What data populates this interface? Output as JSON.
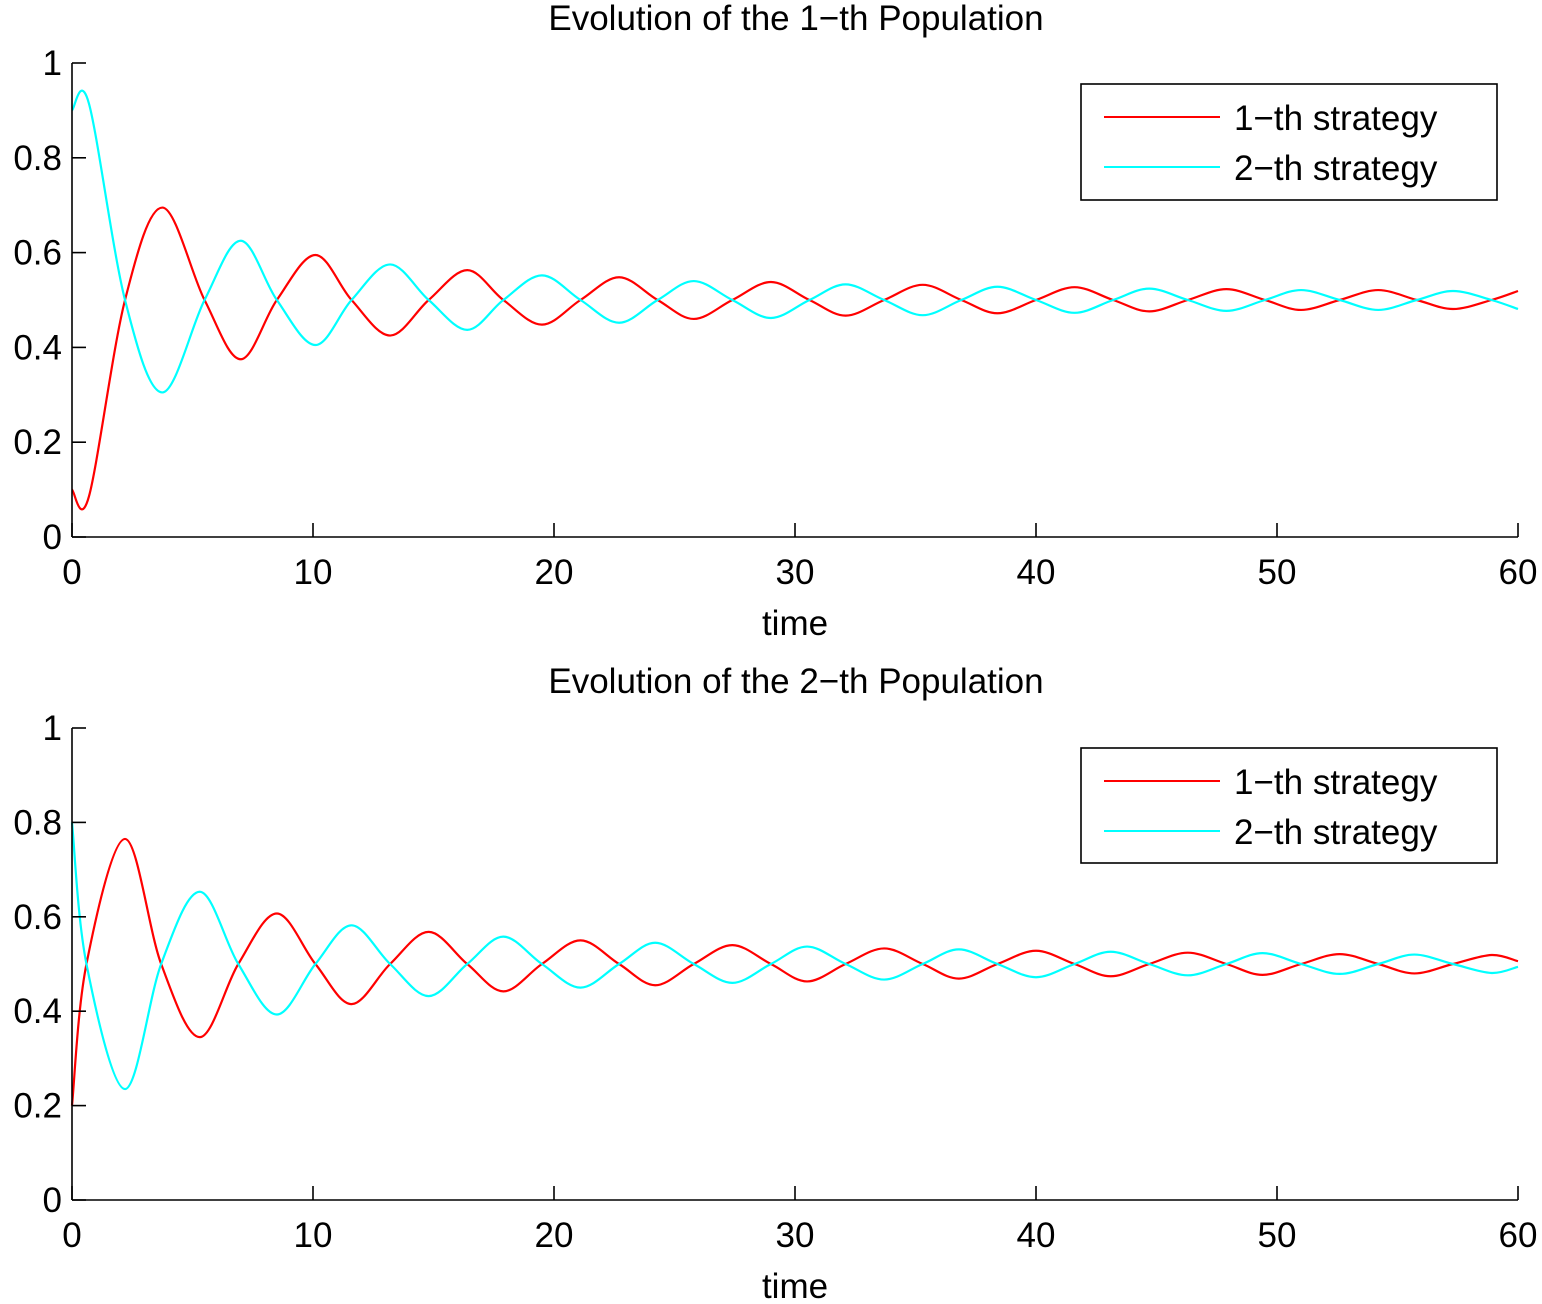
{
  "chart_data": [
    {
      "type": "line",
      "title": "Evolution of the 1−th Population",
      "xlabel": "time",
      "ylabel": "",
      "xlim": [
        0,
        60
      ],
      "ylim": [
        0,
        1
      ],
      "xticks": [
        0,
        10,
        20,
        30,
        40,
        50,
        60
      ],
      "xtick_labels": [
        "0",
        "10",
        "20",
        "30",
        "40",
        "50",
        "60"
      ],
      "yticks": [
        0,
        0.2,
        0.4,
        0.6,
        0.8,
        1
      ],
      "ytick_labels": [
        "0",
        "0.2",
        "0.4",
        "0.6",
        "0.8",
        "1"
      ],
      "grid": false,
      "legend_position": "top-right",
      "series": [
        {
          "name": "1−th strategy",
          "color": "#ff0000",
          "x": [
            0,
            0.7,
            2.2,
            3.75,
            5.5,
            7,
            8.5,
            10.1,
            11.6,
            13.2,
            14.8,
            16.4,
            17.9,
            19.5,
            21.1,
            22.7,
            24.3,
            25.8,
            27.4,
            29,
            30.6,
            32.1,
            33.7,
            35.3,
            36.9,
            38.4,
            40,
            41.6,
            43.2,
            44.7,
            46.3,
            47.9,
            49.5,
            51,
            52.6,
            54.2,
            55.8,
            57.3,
            58.9,
            60
          ],
          "y": [
            0.1,
            0.085,
            0.5,
            0.695,
            0.5,
            0.375,
            0.5,
            0.595,
            0.5,
            0.425,
            0.5,
            0.563,
            0.5,
            0.448,
            0.5,
            0.548,
            0.5,
            0.46,
            0.5,
            0.538,
            0.5,
            0.467,
            0.5,
            0.532,
            0.5,
            0.472,
            0.5,
            0.527,
            0.5,
            0.476,
            0.5,
            0.523,
            0.5,
            0.479,
            0.5,
            0.521,
            0.5,
            0.481,
            0.5,
            0.519
          ]
        },
        {
          "name": "2−th strategy",
          "color": "#00ffff",
          "x": [
            0,
            0.7,
            2.2,
            3.75,
            5.5,
            7,
            8.5,
            10.1,
            11.6,
            13.2,
            14.8,
            16.4,
            17.9,
            19.5,
            21.1,
            22.7,
            24.3,
            25.8,
            27.4,
            29,
            30.6,
            32.1,
            33.7,
            35.3,
            36.9,
            38.4,
            40,
            41.6,
            43.2,
            44.7,
            46.3,
            47.9,
            49.5,
            51,
            52.6,
            54.2,
            55.8,
            57.3,
            58.9,
            60
          ],
          "y": [
            0.9,
            0.915,
            0.5,
            0.305,
            0.5,
            0.625,
            0.5,
            0.405,
            0.5,
            0.575,
            0.5,
            0.437,
            0.5,
            0.552,
            0.5,
            0.452,
            0.5,
            0.54,
            0.5,
            0.462,
            0.5,
            0.533,
            0.5,
            0.468,
            0.5,
            0.528,
            0.5,
            0.473,
            0.5,
            0.524,
            0.5,
            0.477,
            0.5,
            0.521,
            0.5,
            0.479,
            0.5,
            0.519,
            0.5,
            0.481
          ]
        }
      ]
    },
    {
      "type": "line",
      "title": "Evolution of the 2−th Population",
      "xlabel": "time",
      "ylabel": "",
      "xlim": [
        0,
        60
      ],
      "ylim": [
        0,
        1
      ],
      "xticks": [
        0,
        10,
        20,
        30,
        40,
        50,
        60
      ],
      "xtick_labels": [
        "0",
        "10",
        "20",
        "30",
        "40",
        "50",
        "60"
      ],
      "yticks": [
        0,
        0.2,
        0.4,
        0.6,
        0.8,
        1
      ],
      "ytick_labels": [
        "0",
        "0.2",
        "0.4",
        "0.6",
        "0.8",
        "1"
      ],
      "grid": false,
      "legend_position": "top-right",
      "series": [
        {
          "name": "1−th strategy",
          "color": "#ff0000",
          "x": [
            0,
            0.6,
            2.2,
            3.7,
            5.3,
            6.9,
            8.5,
            10.1,
            11.6,
            13.2,
            14.8,
            16.4,
            17.9,
            19.5,
            21.1,
            22.7,
            24.2,
            25.8,
            27.4,
            29,
            30.5,
            32.1,
            33.7,
            35.3,
            36.8,
            38.4,
            40,
            41.6,
            43.1,
            44.7,
            46.3,
            47.9,
            49.4,
            51,
            52.6,
            54.2,
            55.7,
            57.3,
            58.9,
            60
          ],
          "y": [
            0.2,
            0.5,
            0.765,
            0.5,
            0.345,
            0.5,
            0.607,
            0.5,
            0.415,
            0.5,
            0.568,
            0.5,
            0.442,
            0.5,
            0.55,
            0.5,
            0.455,
            0.5,
            0.54,
            0.5,
            0.463,
            0.5,
            0.533,
            0.5,
            0.469,
            0.5,
            0.528,
            0.5,
            0.474,
            0.5,
            0.524,
            0.5,
            0.477,
            0.5,
            0.521,
            0.5,
            0.48,
            0.5,
            0.519,
            0.506
          ]
        },
        {
          "name": "2−th strategy",
          "color": "#00ffff",
          "x": [
            0,
            0.6,
            2.2,
            3.7,
            5.3,
            6.9,
            8.5,
            10.1,
            11.6,
            13.2,
            14.8,
            16.4,
            17.9,
            19.5,
            21.1,
            22.7,
            24.2,
            25.8,
            27.4,
            29,
            30.5,
            32.1,
            33.7,
            35.3,
            36.8,
            38.4,
            40,
            41.6,
            43.1,
            44.7,
            46.3,
            47.9,
            49.4,
            51,
            52.6,
            54.2,
            55.7,
            57.3,
            58.9,
            60
          ],
          "y": [
            0.8,
            0.5,
            0.235,
            0.5,
            0.653,
            0.5,
            0.393,
            0.5,
            0.582,
            0.5,
            0.432,
            0.5,
            0.558,
            0.5,
            0.45,
            0.5,
            0.545,
            0.5,
            0.46,
            0.5,
            0.537,
            0.5,
            0.467,
            0.5,
            0.531,
            0.5,
            0.472,
            0.5,
            0.526,
            0.5,
            0.476,
            0.5,
            0.523,
            0.5,
            0.479,
            0.5,
            0.52,
            0.5,
            0.481,
            0.494
          ]
        }
      ]
    }
  ]
}
